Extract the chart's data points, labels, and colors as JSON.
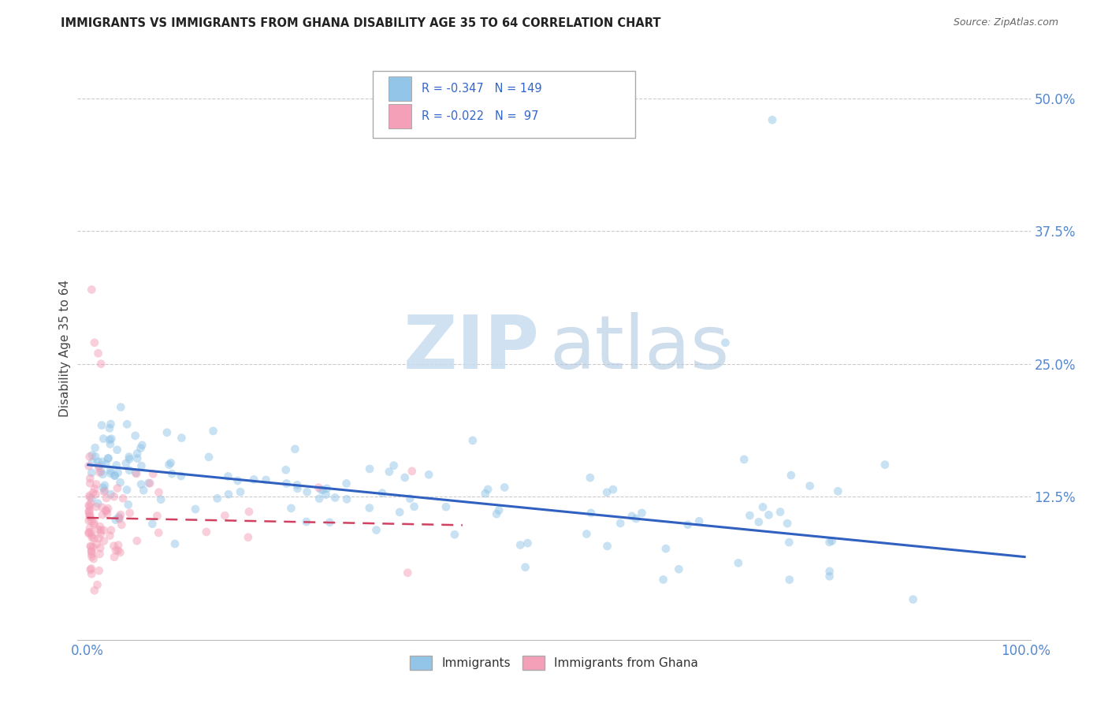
{
  "title": "IMMIGRANTS VS IMMIGRANTS FROM GHANA DISABILITY AGE 35 TO 64 CORRELATION CHART",
  "source_text": "Source: ZipAtlas.com",
  "ylabel": "Disability Age 35 to 64",
  "y_ticks": [
    0.0,
    0.125,
    0.25,
    0.375,
    0.5
  ],
  "y_tick_labels": [
    "",
    "12.5%",
    "25.0%",
    "37.5%",
    "50.0%"
  ],
  "x_ticks": [
    0.0,
    1.0
  ],
  "x_tick_labels": [
    "0.0%",
    "100.0%"
  ],
  "xlim": [
    0.0,
    1.0
  ],
  "ylim": [
    0.0,
    0.54
  ],
  "blue_color": "#92C5E8",
  "pink_color": "#F4A0B8",
  "trend_blue_color": "#3060C0",
  "trend_pink_color": "#D04060",
  "tick_color": "#5588CC",
  "background_color": "#FFFFFF",
  "scatter_alpha": 0.5,
  "marker_size": 60,
  "legend_R1": "-0.347",
  "legend_N1": "149",
  "legend_R2": "-0.022",
  "legend_N2": " 97",
  "watermark_zip": "ZIP",
  "watermark_atlas": "atlas",
  "grid_color": "#CCCCCC",
  "blue_trend_start_y": 0.155,
  "blue_trend_end_y": 0.068,
  "pink_trend_start_y": 0.105,
  "pink_trend_end_y": 0.098,
  "pink_trend_end_x": 0.4
}
